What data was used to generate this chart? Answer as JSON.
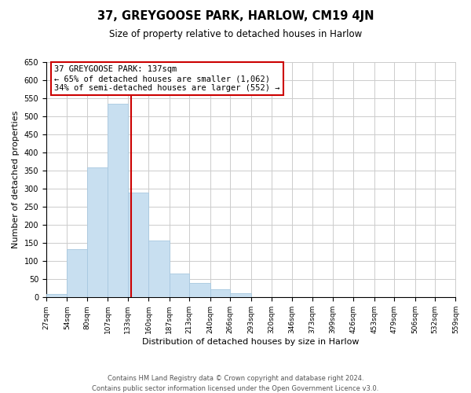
{
  "title": "37, GREYGOOSE PARK, HARLOW, CM19 4JN",
  "subtitle": "Size of property relative to detached houses in Harlow",
  "xlabel": "Distribution of detached houses by size in Harlow",
  "ylabel": "Number of detached properties",
  "bar_color": "#c8dff0",
  "bar_edge_color": "#a8c8e0",
  "bin_edges": [
    27,
    54,
    80,
    107,
    133,
    160,
    187,
    213,
    240,
    266,
    293,
    320,
    346,
    373,
    399,
    426,
    453,
    479,
    506,
    532,
    559
  ],
  "bar_heights": [
    10,
    133,
    358,
    535,
    290,
    157,
    65,
    40,
    22,
    11,
    0,
    0,
    0,
    0,
    0,
    1,
    0,
    0,
    0,
    1
  ],
  "tick_labels": [
    "27sqm",
    "54sqm",
    "80sqm",
    "107sqm",
    "133sqm",
    "160sqm",
    "187sqm",
    "213sqm",
    "240sqm",
    "266sqm",
    "293sqm",
    "320sqm",
    "346sqm",
    "373sqm",
    "399sqm",
    "426sqm",
    "453sqm",
    "479sqm",
    "506sqm",
    "532sqm",
    "559sqm"
  ],
  "property_size": 137,
  "vline_color": "#cc0000",
  "ylim": [
    0,
    650
  ],
  "yticks": [
    0,
    50,
    100,
    150,
    200,
    250,
    300,
    350,
    400,
    450,
    500,
    550,
    600,
    650
  ],
  "annotation_title": "37 GREYGOOSE PARK: 137sqm",
  "annotation_line1": "← 65% of detached houses are smaller (1,062)",
  "annotation_line2": "34% of semi-detached houses are larger (552) →",
  "annotation_box_color": "#ffffff",
  "annotation_box_edge": "#cc0000",
  "footnote1": "Contains HM Land Registry data © Crown copyright and database right 2024.",
  "footnote2": "Contains public sector information licensed under the Open Government Licence v3.0.",
  "background_color": "#ffffff",
  "grid_color": "#cccccc"
}
